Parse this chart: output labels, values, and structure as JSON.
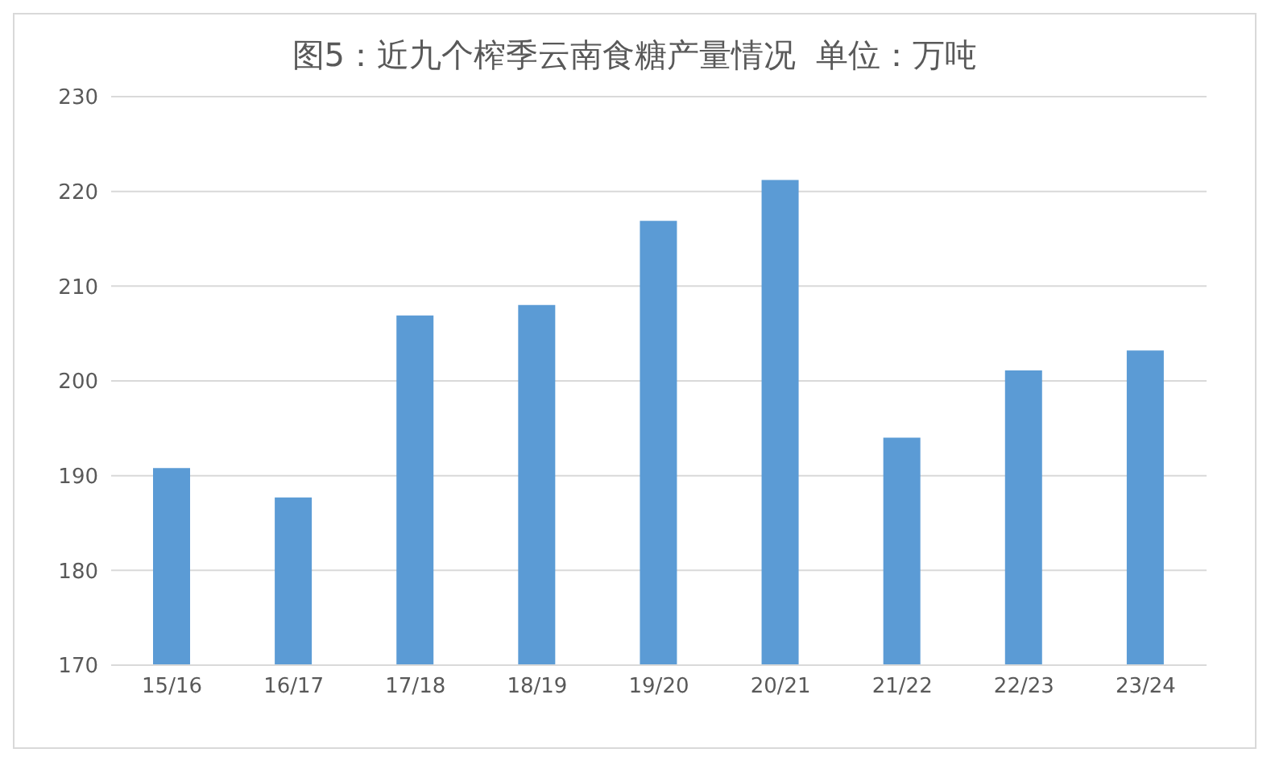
{
  "chart_data": {
    "type": "bar",
    "title": "图5：近九个榨季云南食糖产量情况  单位：万吨",
    "categories": [
      "15/16",
      "16/17",
      "17/18",
      "18/19",
      "19/20",
      "20/21",
      "21/22",
      "22/23",
      "23/24"
    ],
    "values": [
      190.8,
      187.7,
      206.9,
      208,
      216.9,
      221.2,
      194,
      201.1,
      203.2
    ],
    "color": "#5b9bd5",
    "ylim": [
      170,
      230
    ],
    "yticks": [
      170,
      180,
      190,
      200,
      210,
      220,
      230
    ],
    "grid": "y"
  }
}
